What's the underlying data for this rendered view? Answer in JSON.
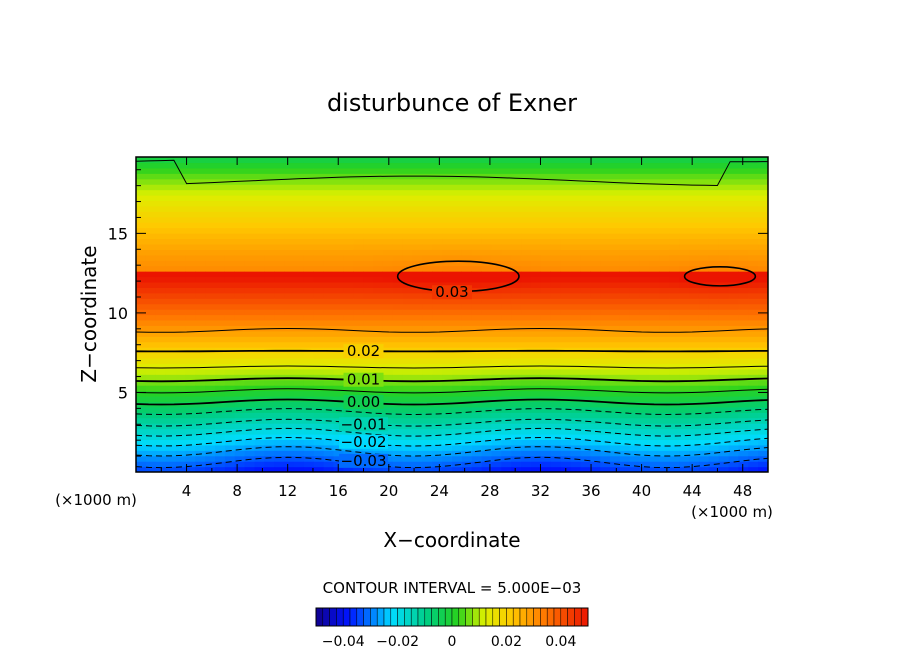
{
  "chart_data": {
    "type": "heatmap",
    "title": "disturbunce of Exner",
    "xlabel": "X−coordinate",
    "ylabel": "Z−coordinate",
    "x_unit": "(×1000 m)",
    "y_unit": "(×1000 m)",
    "xlim": [
      0,
      50
    ],
    "ylim": [
      0,
      19.8
    ],
    "x_ticks": [
      "4",
      "8",
      "12",
      "16",
      "20",
      "24",
      "28",
      "32",
      "36",
      "40",
      "44",
      "48"
    ],
    "y_ticks": [
      "5",
      "10",
      "15"
    ],
    "contour_interval_label": "CONTOUR INTERVAL = 5.000E−03",
    "contour_labels": [
      {
        "text": "0.03",
        "x": 25,
        "z": 11.3
      },
      {
        "text": "0.02",
        "x": 18,
        "z": 7.6
      },
      {
        "text": "0.01",
        "x": 18,
        "z": 5.8
      },
      {
        "text": "0.00",
        "x": 18,
        "z": 4.4
      },
      {
        "text": "−0.01",
        "x": 18,
        "z": 3.0
      },
      {
        "text": "−0.02",
        "x": 18,
        "z": 1.9
      },
      {
        "text": "−0.03",
        "x": 18,
        "z": 0.7
      }
    ],
    "colorbar": {
      "range": [
        -0.05,
        0.05
      ],
      "tick_labels": [
        "−0.04",
        "−0.02",
        "0",
        "0.02",
        "0.04"
      ],
      "tick_values": [
        -0.04,
        -0.02,
        0,
        0.02,
        0.04
      ]
    },
    "grid": false
  }
}
